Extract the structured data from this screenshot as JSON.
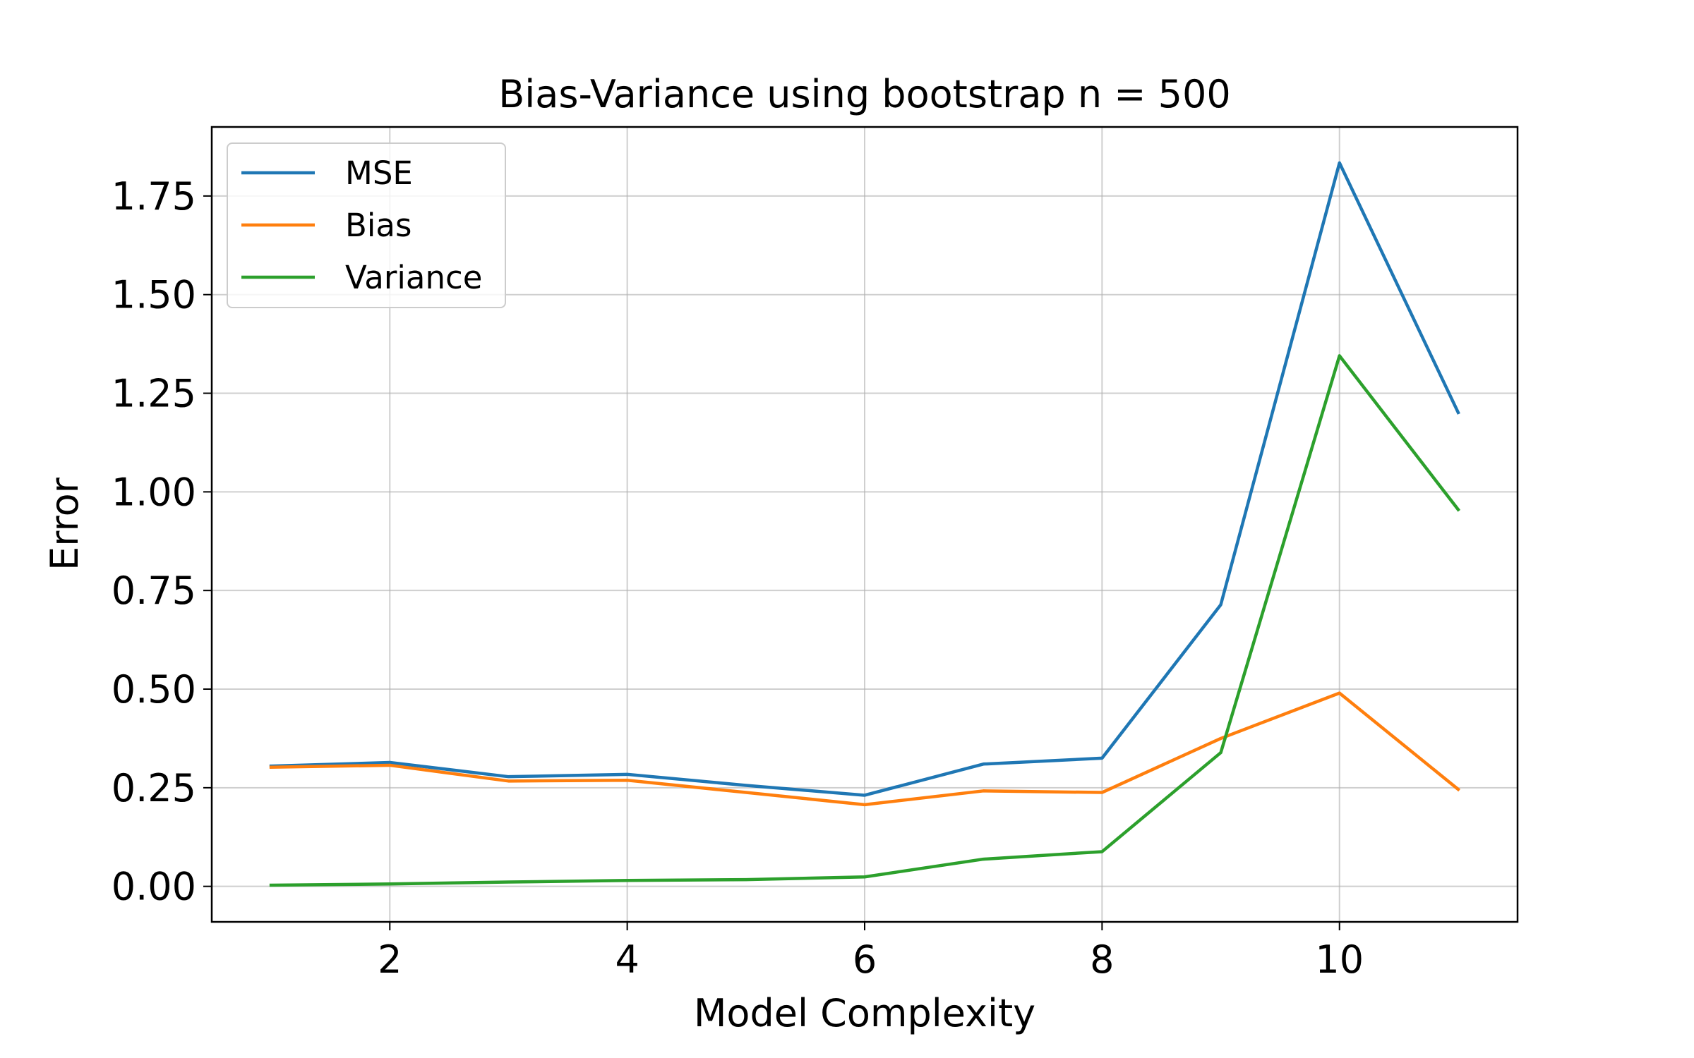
{
  "chart_data": {
    "type": "line",
    "title": "Bias-Variance using bootstrap n = 500",
    "xlabel": "Model Complexity",
    "ylabel": "Error",
    "x": [
      1,
      2,
      3,
      4,
      5,
      6,
      7,
      8,
      9,
      10,
      11
    ],
    "xlim": [
      0.5,
      11.5
    ],
    "ylim": [
      -0.09,
      1.925
    ],
    "xticks": [
      2,
      4,
      6,
      8,
      10
    ],
    "xtick_labels": [
      "2",
      "4",
      "6",
      "8",
      "10"
    ],
    "yticks": [
      0.0,
      0.25,
      0.5,
      0.75,
      1.0,
      1.25,
      1.5,
      1.75
    ],
    "ytick_labels": [
      "0.00",
      "0.25",
      "0.50",
      "0.75",
      "1.00",
      "1.25",
      "1.50",
      "1.75"
    ],
    "grid": true,
    "legend_position": "top-left",
    "series": [
      {
        "name": "MSE",
        "color": "#1f77b4",
        "values": [
          0.305,
          0.314,
          0.278,
          0.284,
          0.256,
          0.231,
          0.31,
          0.325,
          0.714,
          1.834,
          1.201
        ]
      },
      {
        "name": "Bias",
        "color": "#ff7f0e",
        "values": [
          0.302,
          0.307,
          0.267,
          0.269,
          0.238,
          0.207,
          0.242,
          0.238,
          0.375,
          0.49,
          0.246
        ]
      },
      {
        "name": "Variance",
        "color": "#2ca02c",
        "values": [
          0.003,
          0.006,
          0.011,
          0.015,
          0.017,
          0.024,
          0.069,
          0.088,
          0.339,
          1.345,
          0.955
        ]
      }
    ]
  }
}
